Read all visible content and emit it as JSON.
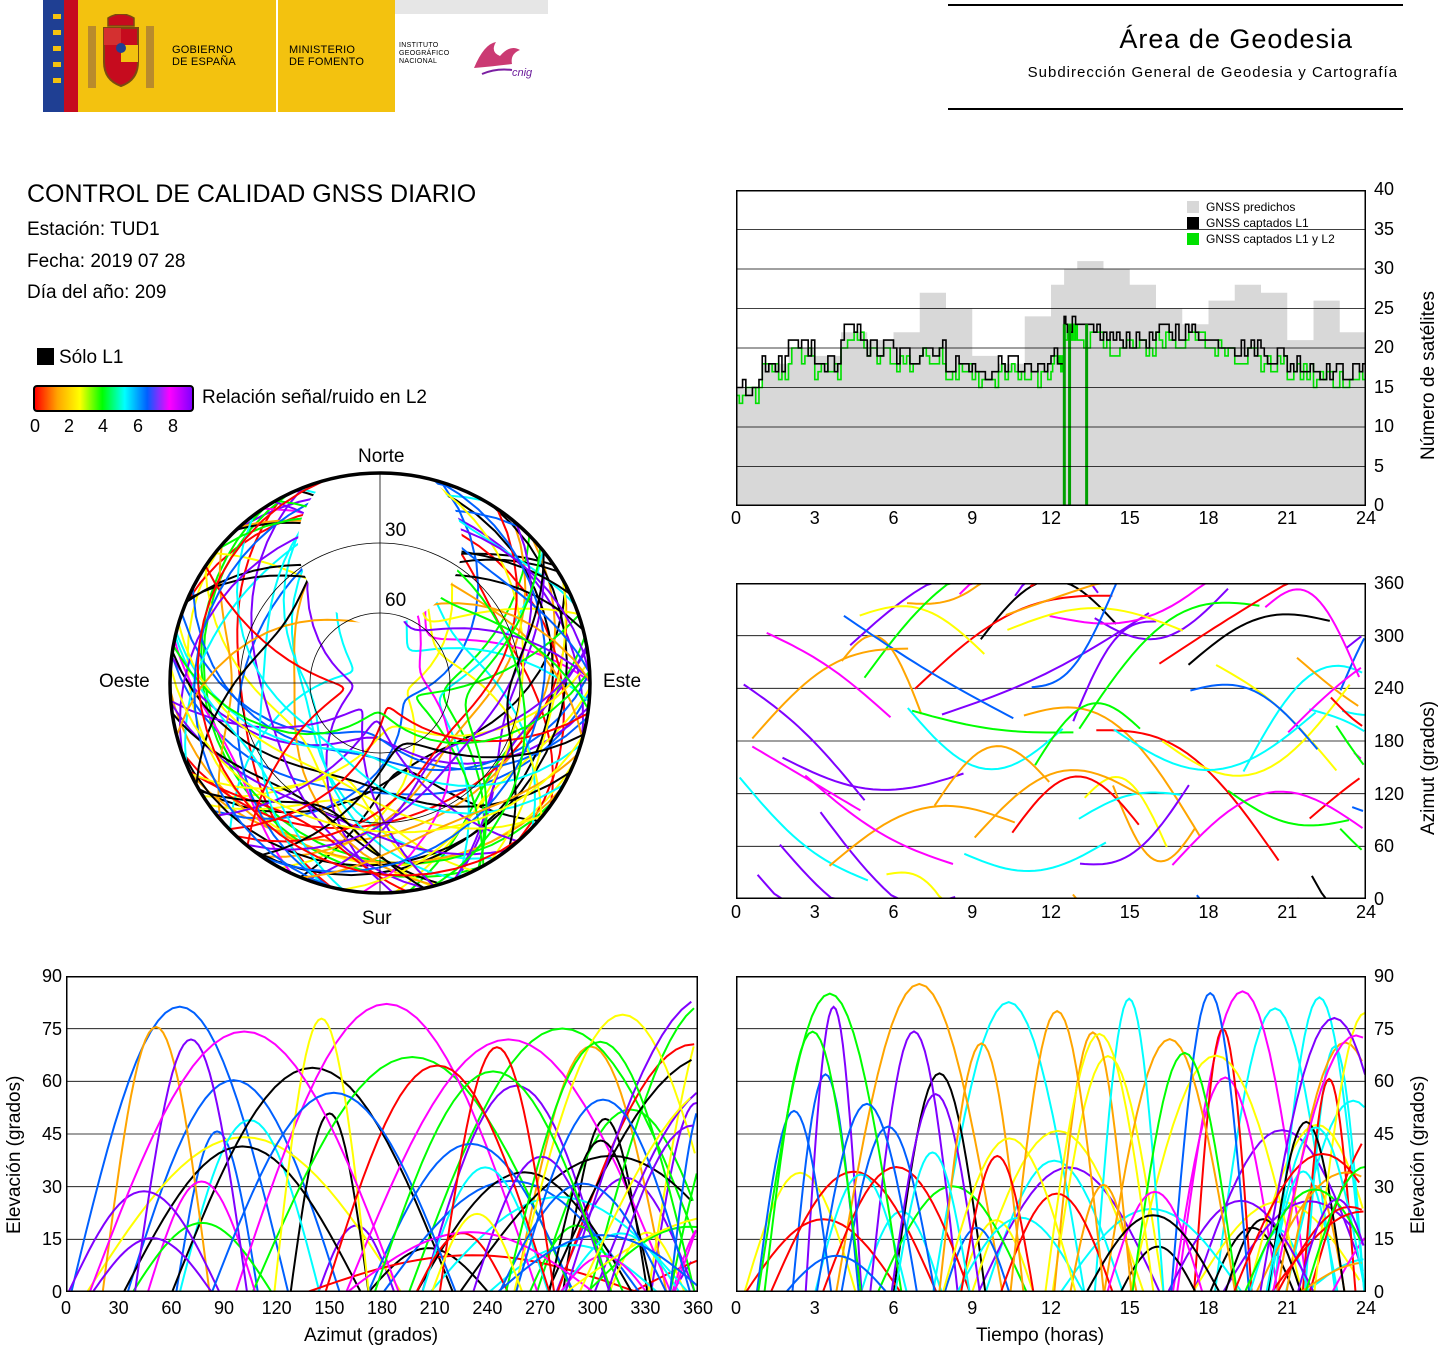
{
  "header": {
    "gov_line1": "GOBIERNO",
    "gov_line2": "DE ESPAÑA",
    "min_line1": "MINISTERIO",
    "min_line2": "DE FOMENTO",
    "ign_line1": "INSTITUTO",
    "ign_line2": "GEOGRÁFICO",
    "ign_line3": "NACIONAL",
    "cnig": "cnig",
    "area_title": "Área de Geodesia",
    "area_subtitle": "Subdirección General de Geodesia y Cartografía"
  },
  "report": {
    "title": "CONTROL DE CALIDAD GNSS DIARIO",
    "station": "Estación: TUD1",
    "date": "Fecha: 2019 07 28",
    "doy": "Día del año: 209"
  },
  "legend": {
    "l1_only": "Sólo L1",
    "snr_label": "Relación señal/ruido en L2",
    "snr_ticks": [
      "0",
      "2",
      "4",
      "6",
      "8"
    ]
  },
  "colors": {
    "predicted": "#d8d8d8",
    "l1": "#000000",
    "l1l2": "#00e000",
    "snr_scale": [
      "#ff0000",
      "#ffa500",
      "#ffff00",
      "#00ff00",
      "#00ffff",
      "#0060ff",
      "#ff00ff",
      "#8000ff"
    ]
  },
  "chart_data": [
    {
      "type": "polar-skyplot",
      "cardinal_labels": {
        "north": "Norte",
        "south": "Sur",
        "east": "Este",
        "west": "Oeste"
      },
      "ring_labels": [
        "30",
        "60"
      ],
      "elevation_rings": [
        30,
        60
      ]
    },
    {
      "type": "area",
      "ylabel": "Número de satélites",
      "xlim": [
        0,
        24
      ],
      "ylim": [
        0,
        40
      ],
      "xticks": [
        "0",
        "3",
        "6",
        "9",
        "12",
        "15",
        "18",
        "21",
        "24"
      ],
      "yticks": [
        "0",
        "5",
        "10",
        "15",
        "20",
        "25",
        "30",
        "35",
        "40"
      ],
      "grid": true,
      "legend_position": "top-right",
      "legend": [
        "GNSS predichos",
        "GNSS captados L1",
        "GNSS captados L1 y L2"
      ],
      "x": [
        0,
        1,
        2,
        3,
        4,
        5,
        6,
        7,
        8,
        9,
        10,
        11,
        12,
        12.5,
        13,
        14,
        15,
        16,
        17,
        18,
        19,
        20,
        21,
        22,
        23,
        24
      ],
      "series": [
        {
          "name": "GNSS predichos",
          "values": [
            15,
            18,
            20,
            19,
            22,
            21,
            22,
            27,
            25,
            19,
            18,
            24,
            28,
            30,
            31,
            30,
            28,
            25,
            23,
            26,
            28,
            27,
            21,
            26,
            22,
            19
          ]
        },
        {
          "name": "GNSS captados L1",
          "values": [
            15,
            18,
            20,
            18,
            22,
            20,
            19,
            20,
            18,
            17,
            18,
            17,
            19,
            23,
            22,
            21,
            21,
            22,
            22,
            21,
            20,
            19,
            18,
            17,
            17,
            17
          ]
        },
        {
          "name": "GNSS captados L1 y L2",
          "values": [
            14,
            17,
            19,
            17,
            21,
            19,
            18,
            19,
            17,
            16,
            17,
            16,
            18,
            22,
            21,
            20,
            20,
            21,
            21,
            20,
            19,
            18,
            17,
            16,
            16,
            16
          ]
        }
      ]
    },
    {
      "type": "scatter",
      "ylabel": "Azimut (grados)",
      "xlim": [
        0,
        24
      ],
      "ylim": [
        0,
        360
      ],
      "xticks": [
        "0",
        "3",
        "6",
        "9",
        "12",
        "15",
        "18",
        "21",
        "24"
      ],
      "yticks": [
        "0",
        "60",
        "120",
        "180",
        "240",
        "300",
        "360"
      ],
      "grid": true
    },
    {
      "type": "scatter",
      "xlabel": "Azimut (grados)",
      "ylabel": "Elevación (grados)",
      "xlim": [
        0,
        360
      ],
      "ylim": [
        0,
        90
      ],
      "xticks": [
        "0",
        "30",
        "60",
        "90",
        "120",
        "150",
        "180",
        "210",
        "240",
        "270",
        "300",
        "330",
        "360"
      ],
      "yticks": [
        "0",
        "15",
        "30",
        "45",
        "60",
        "75",
        "90"
      ],
      "grid": true
    },
    {
      "type": "scatter",
      "xlabel": "Tiempo (horas)",
      "ylabel": "Elevación (grados)",
      "xlim": [
        0,
        24
      ],
      "ylim": [
        0,
        90
      ],
      "xticks": [
        "0",
        "3",
        "6",
        "9",
        "12",
        "15",
        "18",
        "21",
        "24"
      ],
      "yticks": [
        "0",
        "15",
        "30",
        "45",
        "60",
        "75",
        "90"
      ],
      "grid": true
    }
  ]
}
